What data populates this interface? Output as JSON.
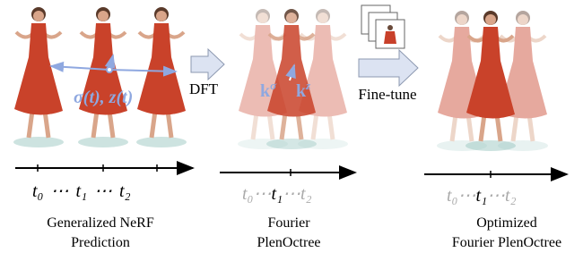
{
  "panels": [
    {
      "annotation": "σ(t), z(t)",
      "timeline": [
        "t₀",
        "⋯",
        "t₁",
        "⋯",
        "t₂"
      ],
      "caption": [
        "Generalized NeRF",
        "Prediction"
      ]
    },
    {
      "annotation": [
        {
          "symbol": "k",
          "superscript": "σ"
        },
        {
          "symbol": "k",
          "superscript": "z"
        }
      ],
      "timeline": [
        "t₀",
        "⋯",
        "t₁",
        "⋯",
        "t₂"
      ],
      "caption": [
        "Fourier",
        "PlenOctree"
      ]
    },
    {
      "timeline": [
        "t₀",
        "⋯",
        "t₁",
        "⋯",
        "t₂"
      ],
      "caption": [
        "Optimized",
        "Fourier PlenOctree"
      ]
    }
  ],
  "arrows": [
    {
      "label": "DFT"
    },
    {
      "label": "Fine-tune"
    }
  ]
}
